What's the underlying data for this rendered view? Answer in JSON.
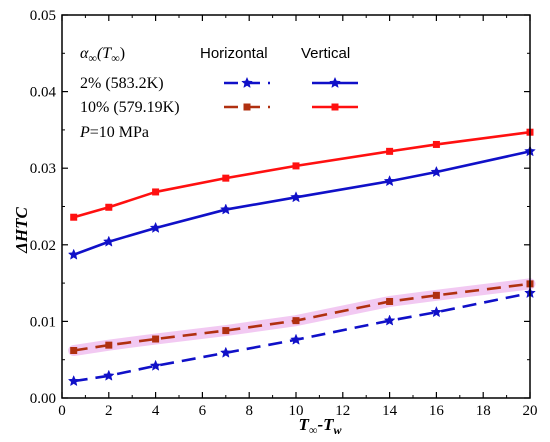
{
  "chart_data": {
    "type": "line",
    "xlabel_main": "T",
    "xlabel_sub1": "∞",
    "xlabel_dash": "-T",
    "xlabel_sub2": "w",
    "ylabel_delta": "Δ",
    "ylabel_main": "HTC",
    "xlim": [
      0,
      20
    ],
    "ylim": [
      0,
      0.05
    ],
    "x_ticks": [
      "0",
      "2",
      "4",
      "6",
      "8",
      "10",
      "12",
      "14",
      "16",
      "18",
      "20"
    ],
    "y_ticks": [
      "0.00",
      "0.01",
      "0.02",
      "0.03",
      "0.04",
      "0.05"
    ],
    "legend": {
      "param_prefix": "α",
      "param_sub": "∞",
      "param_arg": "(T",
      "param_arg_sub": "∞",
      "param_close": ")",
      "col_horizontal": "Horizontal",
      "col_vertical": "Vertical",
      "row1": "2% (583.2K)",
      "row2": "10% (579.19K)",
      "pressure_var": "P",
      "pressure_val": "=10 MPa"
    },
    "series": [
      {
        "id": "v2",
        "color": "#1010c8",
        "dash": false,
        "marker": "star",
        "x": [
          0.5,
          2,
          4,
          7,
          10,
          14,
          16,
          20
        ],
        "y": [
          0.0187,
          0.0204,
          0.0222,
          0.0246,
          0.0262,
          0.0283,
          0.0295,
          0.0322
        ]
      },
      {
        "id": "v10",
        "color": "#ff1010",
        "dash": false,
        "marker": "square",
        "x": [
          0.5,
          2,
          4,
          7,
          10,
          14,
          16,
          20
        ],
        "y": [
          0.0236,
          0.0249,
          0.0269,
          0.0287,
          0.0303,
          0.0322,
          0.0331,
          0.0347
        ]
      },
      {
        "id": "h2",
        "color": "#1010c8",
        "dash": true,
        "marker": "star",
        "x": [
          0.5,
          2,
          4,
          7,
          10,
          14,
          16,
          20
        ],
        "y": [
          0.0022,
          0.0029,
          0.0042,
          0.0059,
          0.0076,
          0.0101,
          0.0112,
          0.0137
        ]
      },
      {
        "id": "h10",
        "color": "#b03010",
        "dash": true,
        "marker": "square",
        "x": [
          0.5,
          2,
          4,
          7,
          10,
          14,
          16,
          20
        ],
        "y": [
          0.0062,
          0.0069,
          0.0077,
          0.0088,
          0.0101,
          0.0126,
          0.0134,
          0.0149
        ]
      }
    ],
    "highlight_color": "#f0c0f0"
  }
}
